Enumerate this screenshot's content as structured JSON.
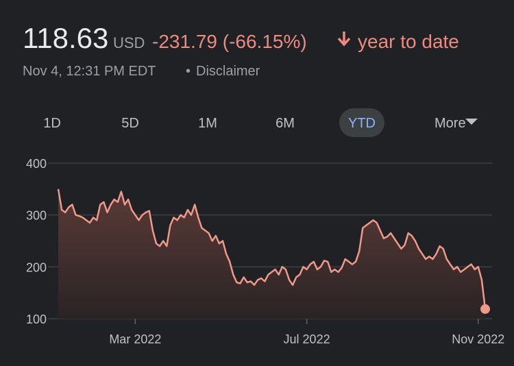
{
  "header": {
    "price": "118.63",
    "currency": "USD",
    "change": "-231.79 (-66.15%)",
    "period": "year to date",
    "timestamp": "Nov 4, 12:31 PM EDT",
    "separator": "•",
    "disclaimer": "Disclaimer"
  },
  "tabs": [
    "1D",
    "5D",
    "1M",
    "6M",
    "YTD",
    "More"
  ],
  "selected_tab": "YTD",
  "chart_data": {
    "type": "line",
    "color": "#f0998a",
    "values": [
      350,
      310,
      305,
      315,
      320,
      300,
      298,
      295,
      290,
      285,
      295,
      290,
      320,
      325,
      305,
      320,
      330,
      325,
      345,
      320,
      330,
      310,
      300,
      290,
      300,
      305,
      308,
      270,
      245,
      240,
      250,
      240,
      280,
      295,
      290,
      300,
      295,
      310,
      300,
      320,
      295,
      275,
      270,
      265,
      250,
      260,
      245,
      250,
      225,
      210,
      185,
      170,
      168,
      180,
      170,
      172,
      165,
      175,
      178,
      172,
      185,
      190,
      195,
      185,
      200,
      195,
      175,
      165,
      180,
      185,
      200,
      195,
      205,
      210,
      195,
      200,
      212,
      210,
      190,
      195,
      190,
      198,
      215,
      210,
      205,
      210,
      230,
      275,
      280,
      285,
      290,
      285,
      270,
      255,
      258,
      265,
      255,
      245,
      235,
      242,
      265,
      260,
      250,
      235,
      225,
      215,
      220,
      215,
      225,
      240,
      235,
      215,
      205,
      195,
      200,
      190,
      195,
      200,
      205,
      195,
      200,
      175,
      118.63
    ],
    "xlim": [
      0,
      122
    ],
    "xticks": [
      {
        "value": 22,
        "label": "Mar 2022"
      },
      {
        "value": 71,
        "label": "Jul 2022"
      },
      {
        "value": 120,
        "label": "Nov 2022"
      }
    ],
    "ylim": [
      100,
      400
    ],
    "yticks": [
      100,
      200,
      300,
      400
    ],
    "grid": true
  }
}
